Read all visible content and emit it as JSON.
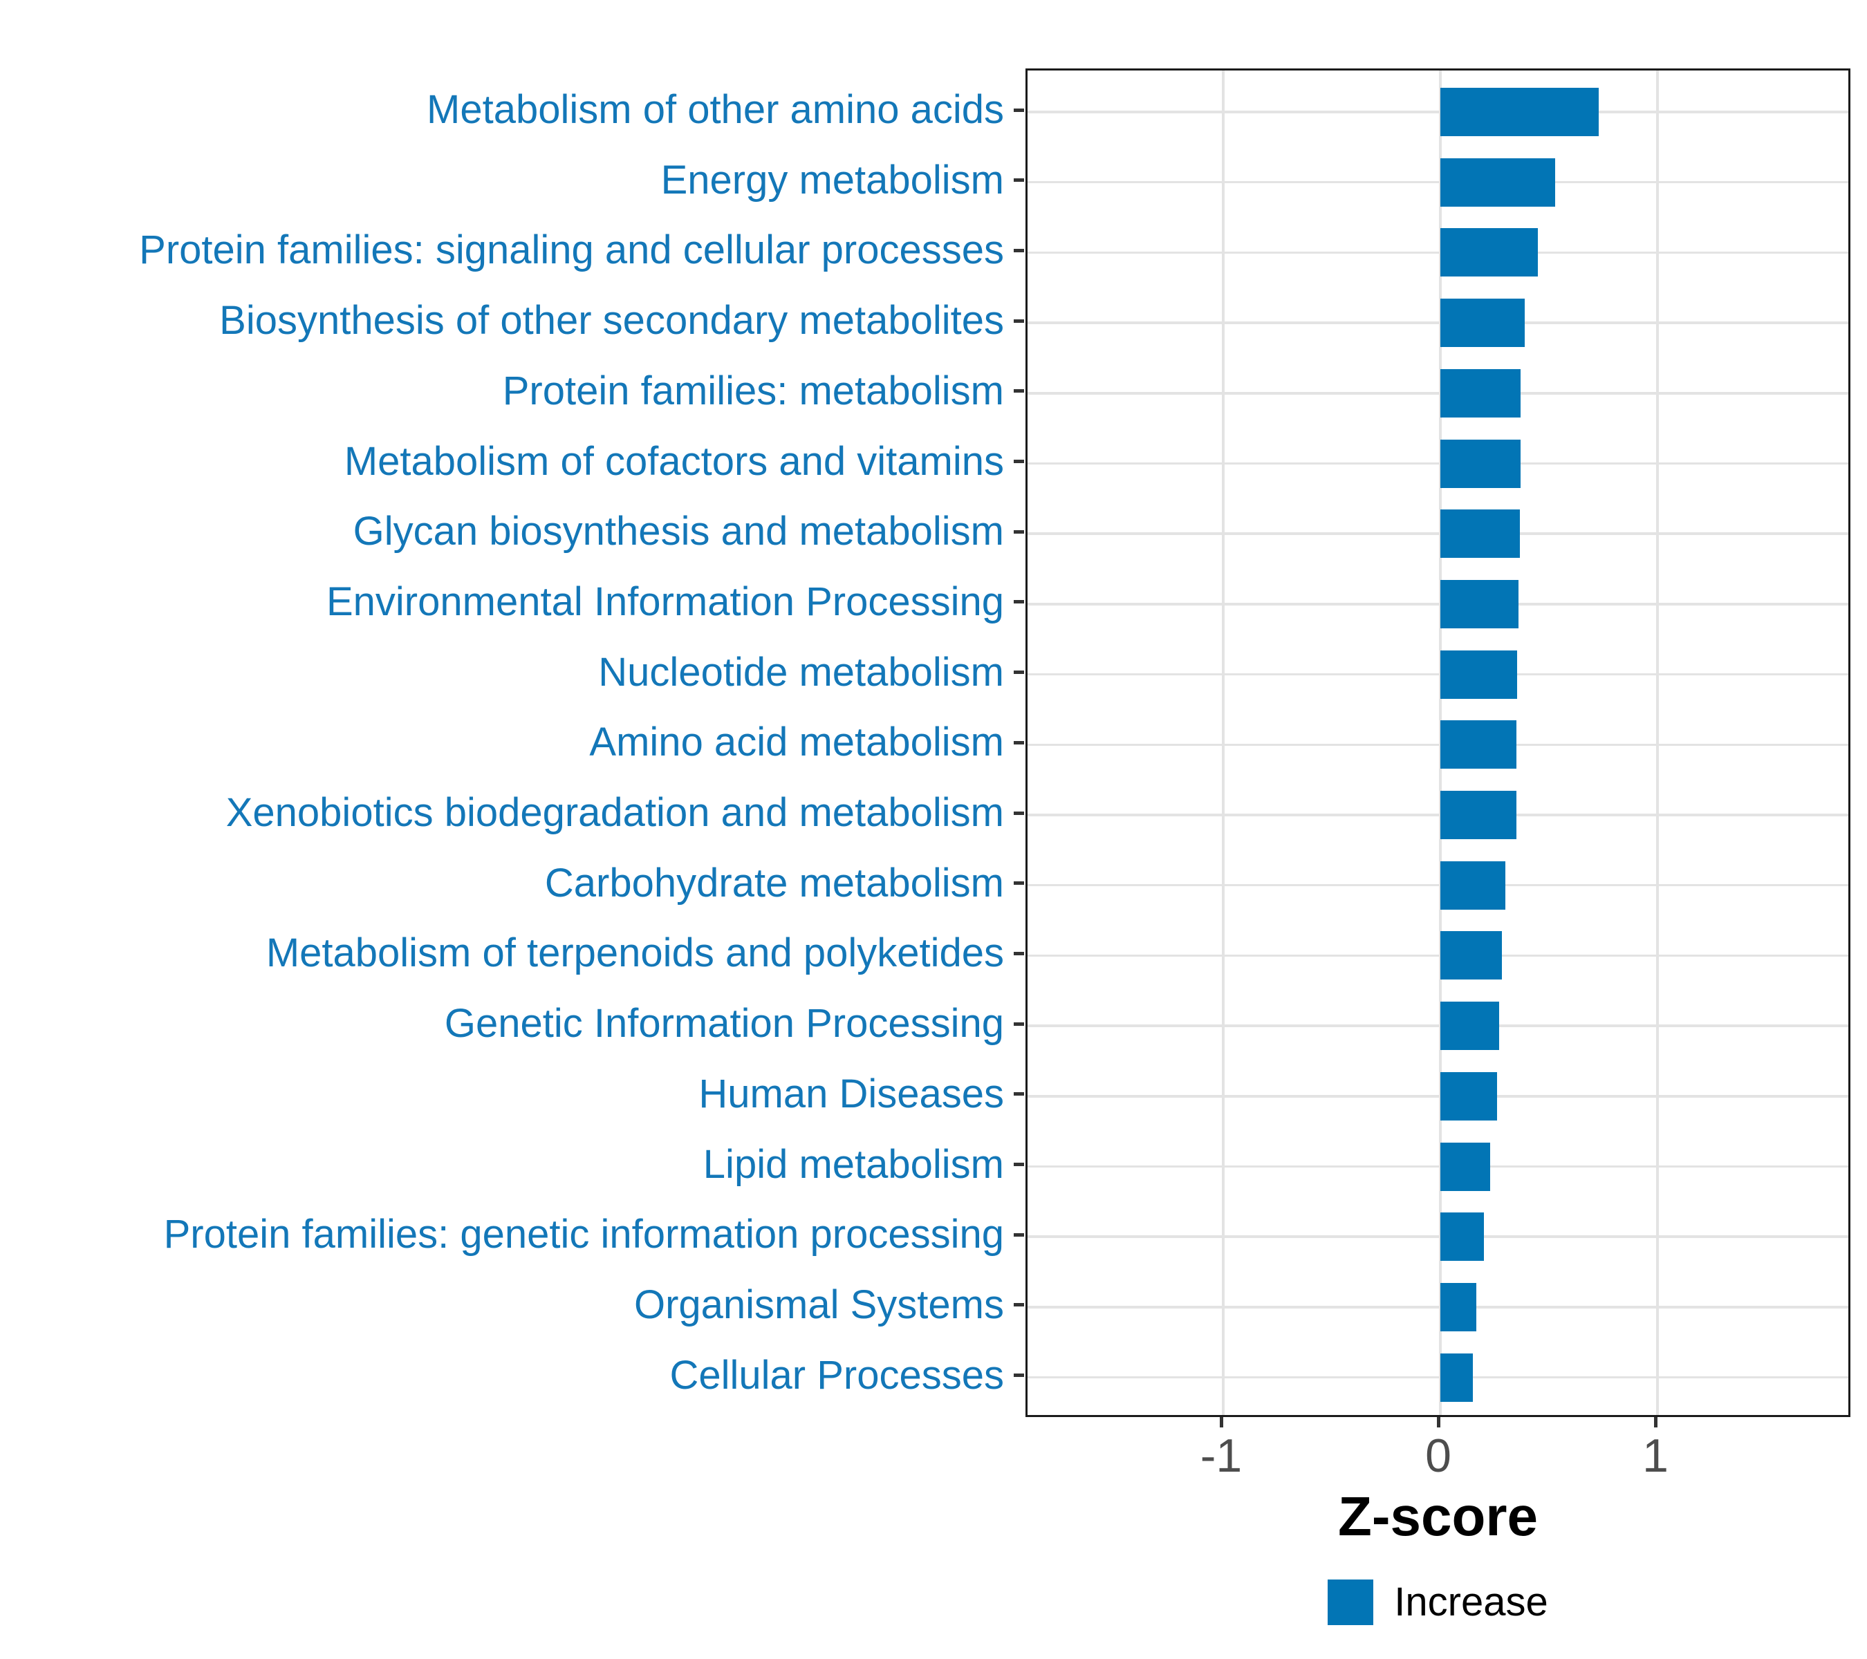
{
  "figure": {
    "background": "#ffffff",
    "panel_border_color": "#1b1b1b",
    "grid_color": "#e3e3e3",
    "tick_mark_color": "#333333"
  },
  "chart_data": {
    "type": "bar",
    "orientation": "horizontal",
    "title": "",
    "xlabel": "Z-score",
    "ylabel": "",
    "xlim": [
      -1.9,
      1.9
    ],
    "x_ticks": [
      -1,
      0,
      1
    ],
    "grid": "major-only",
    "bar_color": "#0275b5",
    "category_label_color": "#1377b8",
    "tick_label_color": "#4d4d4d",
    "categories": [
      "Metabolism of other amino acids",
      "Energy metabolism",
      "Protein families: signaling and cellular processes",
      "Biosynthesis of other secondary metabolites",
      "Protein families: metabolism",
      "Metabolism of cofactors and vitamins",
      "Glycan biosynthesis and metabolism",
      "Environmental Information Processing",
      "Nucleotide metabolism",
      "Amino acid metabolism",
      "Xenobiotics biodegradation and metabolism",
      "Carbohydrate metabolism",
      "Metabolism of terpenoids and polyketides",
      "Genetic Information Processing",
      "Human Diseases",
      "Lipid metabolism",
      "Protein families: genetic information processing",
      "Organismal Systems",
      "Cellular Processes"
    ],
    "values": [
      0.73,
      0.53,
      0.45,
      0.39,
      0.37,
      0.37,
      0.365,
      0.36,
      0.355,
      0.35,
      0.35,
      0.3,
      0.285,
      0.27,
      0.26,
      0.23,
      0.2,
      0.165,
      0.15
    ],
    "legend": {
      "position": "bottom",
      "entries": [
        {
          "label": "Increase",
          "color": "#0275b5"
        }
      ]
    }
  }
}
